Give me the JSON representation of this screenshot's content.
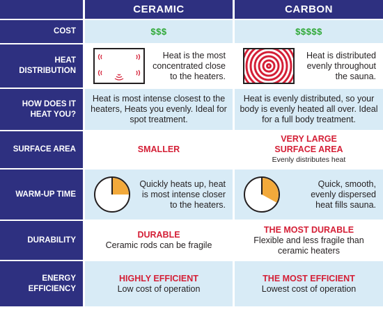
{
  "header": {
    "col1": "CERAMIC",
    "col2": "CARBON"
  },
  "colors": {
    "navy": "#2e3080",
    "light_blue": "#d8ebf6",
    "red": "#d41f36",
    "green": "#2ea836",
    "orange": "#f2a93b"
  },
  "rows": {
    "cost": {
      "label": "COST",
      "ceramic": "$$$",
      "carbon": "$$$$$"
    },
    "heat_distribution": {
      "label_line1": "HEAT",
      "label_line2": "DISTRIBUTION",
      "ceramic_icon": "corner-heat-icon",
      "ceramic_text": "Heat is the most concentrated close to the heaters.",
      "carbon_icon": "concentric-rings-icon",
      "carbon_text": "Heat is distributed evenly throughout the sauna."
    },
    "how_heat": {
      "label_line1": "HOW DOES IT",
      "label_line2": "HEAT YOU?",
      "ceramic": "Heat is most intense closest to the heaters, Heats you evenly.  Ideal for spot treatment.",
      "carbon": "Heat is evenly distributed, so your body is evenly heated all over. Ideal for a full body treatment."
    },
    "surface_area": {
      "label": "SURFACE AREA",
      "ceramic": "SMALLER",
      "carbon_line1": "VERY LARGE",
      "carbon_line2": "SURFACE AREA",
      "carbon_note": "Evenly distributes heat"
    },
    "warm_up": {
      "label": "WARM-UP TIME",
      "ceramic_icon": "clock-quarter-icon",
      "ceramic_level": 0.25,
      "ceramic_text": "Quickly heats up, heat is most intense closer to the heaters.",
      "carbon_icon": "clock-third-icon",
      "carbon_level": 0.33,
      "carbon_text": "Quick, smooth, evenly dispersed heat fills sauna."
    },
    "durability": {
      "label": "DURABILITY",
      "ceramic_title": "DURABLE",
      "ceramic_text": "Ceramic rods can be fragile",
      "carbon_title": "THE MOST DURABLE",
      "carbon_text": "Flexible and less fragile than ceramic heaters"
    },
    "energy": {
      "label_line1": "ENERGY",
      "label_line2": "EFFICIENCY",
      "ceramic_title": "HIGHLY EFFICIENT",
      "ceramic_text": "Low cost of operation",
      "carbon_title": "THE MOST EFFICIENT",
      "carbon_text": "Lowest cost of operation"
    }
  }
}
